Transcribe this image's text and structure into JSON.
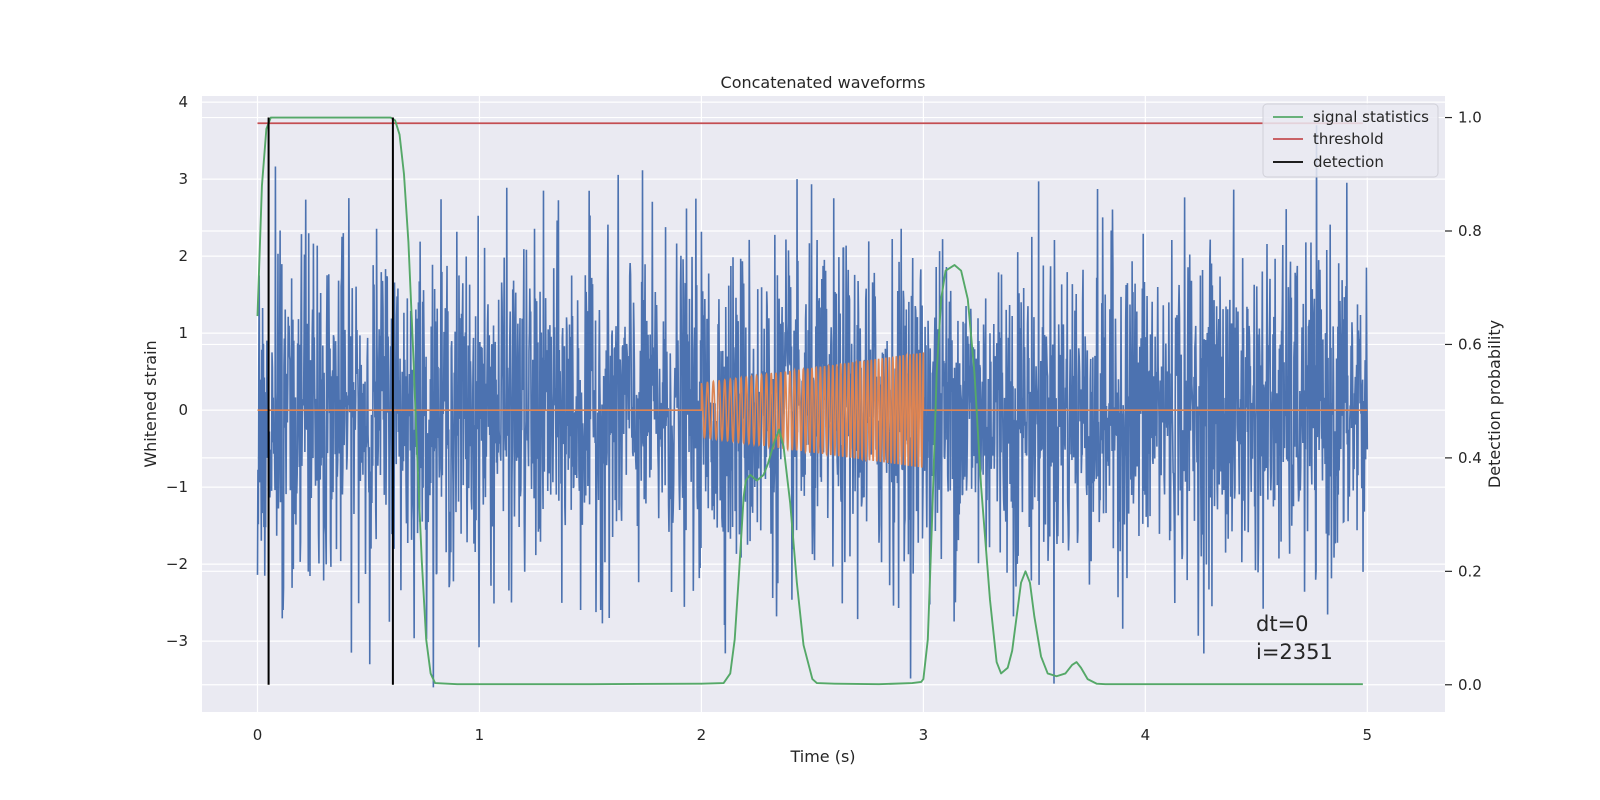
{
  "chart_data": {
    "type": "line",
    "title": "Concatenated waveforms",
    "xlabel": "Time (s)",
    "ylabel_left": "Whitened strain",
    "ylabel_right": "Detection probability",
    "xlim": [
      -0.25,
      5.35
    ],
    "ylim_left": [
      -3.92,
      4.08
    ],
    "ylim_right": [
      -0.048,
      1.038
    ],
    "x_ticks": [
      "0",
      "1",
      "2",
      "3",
      "4",
      "5"
    ],
    "x_tick_values": [
      0,
      1,
      2,
      3,
      4,
      5
    ],
    "y_left_ticks": [
      "4",
      "3",
      "2",
      "1",
      "0",
      "−1",
      "−2",
      "−3"
    ],
    "y_left_tick_values": [
      4,
      3,
      2,
      1,
      0,
      -1,
      -2,
      -3
    ],
    "y_right_ticks": [
      "1.0",
      "0.8",
      "0.6",
      "0.4",
      "0.2",
      "0.0"
    ],
    "y_right_tick_values": [
      1.0,
      0.8,
      0.6,
      0.4,
      0.2,
      0.0
    ],
    "grid": true,
    "legend_position": "top-right",
    "colors": {
      "strain": "#4c72b0",
      "injection": "#dd8452",
      "signal_statistics": "#55a868",
      "threshold": "#c44e52",
      "detection": "#000000",
      "background": "#eaeaf2",
      "grid": "#ffffff"
    },
    "series": [
      {
        "name": "signal statistics",
        "axis": "right",
        "x": [
          0.0,
          0.02,
          0.04,
          0.06,
          0.08,
          0.1,
          0.2,
          0.3,
          0.4,
          0.5,
          0.6,
          0.62,
          0.64,
          0.66,
          0.68,
          0.7,
          0.72,
          0.74,
          0.76,
          0.78,
          0.8,
          0.9,
          1.0,
          1.5,
          2.0,
          2.1,
          2.13,
          2.15,
          2.17,
          2.19,
          2.2,
          2.22,
          2.25,
          2.28,
          2.3,
          2.33,
          2.35,
          2.37,
          2.4,
          2.43,
          2.46,
          2.5,
          2.52,
          2.6,
          2.8,
          2.95,
          2.99,
          3.0,
          3.02,
          3.04,
          3.06,
          3.08,
          3.1,
          3.14,
          3.17,
          3.2,
          3.23,
          3.26,
          3.3,
          3.33,
          3.35,
          3.38,
          3.4,
          3.42,
          3.44,
          3.46,
          3.48,
          3.5,
          3.53,
          3.56,
          3.6,
          3.64,
          3.67,
          3.69,
          3.71,
          3.74,
          3.78,
          3.82,
          4.0,
          4.5,
          4.98
        ],
        "y": [
          0.65,
          0.88,
          0.98,
          1.0,
          1.0,
          1.0,
          1.0,
          1.0,
          1.0,
          1.0,
          1.0,
          0.995,
          0.97,
          0.9,
          0.78,
          0.6,
          0.4,
          0.22,
          0.08,
          0.02,
          0.003,
          0.001,
          0.001,
          0.001,
          0.002,
          0.003,
          0.02,
          0.08,
          0.2,
          0.33,
          0.36,
          0.37,
          0.36,
          0.37,
          0.39,
          0.43,
          0.45,
          0.42,
          0.32,
          0.18,
          0.07,
          0.01,
          0.003,
          0.002,
          0.001,
          0.003,
          0.005,
          0.01,
          0.08,
          0.3,
          0.55,
          0.68,
          0.73,
          0.74,
          0.73,
          0.68,
          0.55,
          0.35,
          0.15,
          0.04,
          0.02,
          0.03,
          0.06,
          0.12,
          0.18,
          0.2,
          0.18,
          0.12,
          0.05,
          0.02,
          0.015,
          0.02,
          0.035,
          0.04,
          0.03,
          0.01,
          0.002,
          0.001,
          0.001,
          0.001,
          0.001
        ]
      },
      {
        "name": "threshold",
        "axis": "right",
        "x": [
          0.0,
          4.98
        ],
        "y": [
          0.99,
          0.99
        ]
      },
      {
        "name": "detection",
        "axis": "right",
        "type": "vline",
        "x": [
          0.05,
          0.61
        ],
        "ymin": 0.0,
        "ymax": 1.0
      },
      {
        "axis": "left",
        "type": "noise",
        "x_range": [
          0.0,
          5.0
        ],
        "y_range": [
          -3.6,
          3.7
        ]
      },
      {
        "axis": "left",
        "type": "chirp",
        "x_range": [
          2.0,
          3.0
        ],
        "amplitude_start": 0.35,
        "amplitude_end": 0.75,
        "cycles": 52
      }
    ],
    "annotations": [
      "dt=0",
      "i=2351"
    ]
  }
}
